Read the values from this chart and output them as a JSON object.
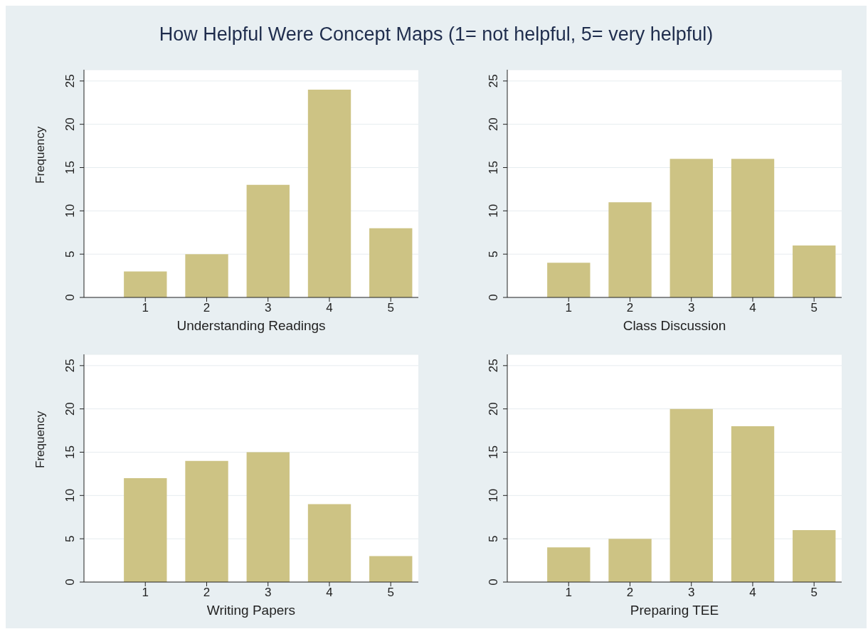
{
  "chart_data": [
    {
      "type": "bar",
      "title": "How Helpful Were Concept Maps (1= not helpful, 5= very helpful)",
      "xlabel": "Understanding Readings",
      "ylabel": "Frequency",
      "x": [
        1,
        2,
        3,
        4,
        5
      ],
      "values": [
        3,
        5,
        13,
        24,
        8
      ],
      "color": "#cdc384",
      "xlim": [
        0,
        5.45
      ],
      "xticks": [
        1,
        2,
        3,
        4,
        5
      ],
      "ylim": [
        0,
        26.3
      ],
      "yticks": [
        0,
        5,
        10,
        15,
        20,
        25
      ],
      "grid": "y"
    },
    {
      "type": "bar",
      "xlabel": "Class Discussion",
      "x": [
        1,
        2,
        3,
        4,
        5
      ],
      "values": [
        4,
        11,
        16,
        16,
        6
      ],
      "color": "#cdc384",
      "xlim": [
        0,
        5.45
      ],
      "xticks": [
        1,
        2,
        3,
        4,
        5
      ],
      "ylim": [
        0,
        26.3
      ],
      "yticks": [
        0,
        5,
        10,
        15,
        20,
        25
      ],
      "grid": "y"
    },
    {
      "type": "bar",
      "xlabel": "Writing Papers",
      "ylabel": "Frequency",
      "x": [
        1,
        2,
        3,
        4,
        5
      ],
      "values": [
        12,
        14,
        15,
        9,
        3
      ],
      "color": "#cdc384",
      "xlim": [
        0,
        5.45
      ],
      "xticks": [
        1,
        2,
        3,
        4,
        5
      ],
      "ylim": [
        0,
        26.3
      ],
      "yticks": [
        0,
        5,
        10,
        15,
        20,
        25
      ],
      "grid": "y"
    },
    {
      "type": "bar",
      "xlabel": "Preparing TEE",
      "x": [
        1,
        2,
        3,
        4,
        5
      ],
      "values": [
        4,
        5,
        20,
        18,
        6
      ],
      "color": "#cdc384",
      "xlim": [
        0,
        5.45
      ],
      "xticks": [
        1,
        2,
        3,
        4,
        5
      ],
      "ylim": [
        0,
        26.3
      ],
      "yticks": [
        0,
        5,
        10,
        15,
        20,
        25
      ],
      "grid": "y"
    }
  ]
}
